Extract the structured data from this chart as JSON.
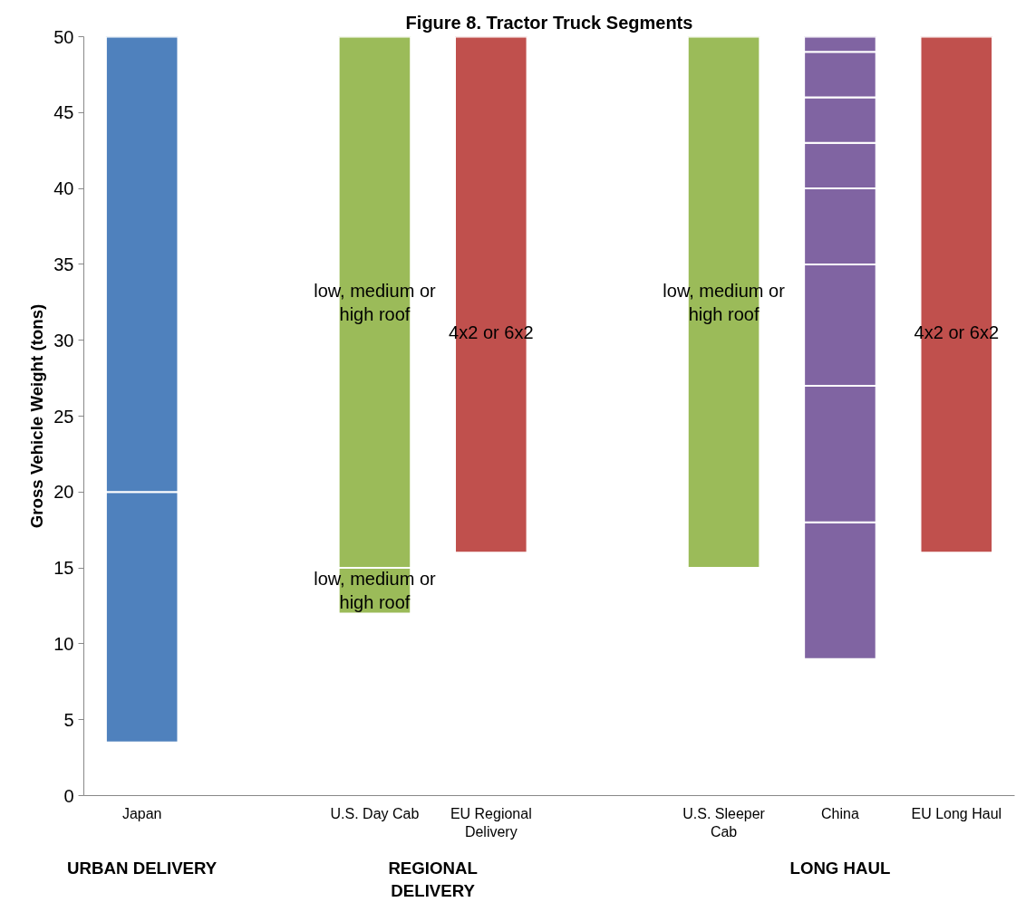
{
  "chart_data": {
    "type": "bar",
    "title": "Figure 8. Tractor Truck Segments",
    "ylabel": "Gross Vehicle Weight (tons)",
    "categories": [
      "Japan",
      null,
      "U.S. Day Cab",
      "EU Regional Delivery",
      null,
      "U.S. Sleeper Cab",
      "China",
      "EU Long Haul"
    ],
    "series": [
      {
        "base": [
          3.5,
          null,
          12,
          16,
          null,
          15,
          9,
          16
        ],
        "values": [
          16.5,
          null,
          3,
          34,
          null,
          35,
          9,
          34
        ],
        "colors": [
          "#4f81bd",
          null,
          "#9bbb59",
          "#c0504d",
          null,
          "#9bbb59",
          "#8064a2",
          "#c0504d"
        ]
      },
      {
        "base": [
          20,
          null,
          15,
          null,
          null,
          null,
          18,
          null
        ],
        "values": [
          30,
          null,
          35,
          null,
          null,
          null,
          9,
          null
        ],
        "colors": [
          "#4f81bd",
          null,
          "#9bbb59",
          null,
          null,
          null,
          "#8064a2",
          null
        ]
      },
      {
        "base": [
          null,
          null,
          null,
          null,
          null,
          null,
          27,
          null
        ],
        "values": [
          null,
          null,
          null,
          null,
          null,
          null,
          8,
          null
        ],
        "colors": [
          null,
          null,
          null,
          null,
          null,
          null,
          "#8064a2",
          null
        ]
      },
      {
        "base": [
          null,
          null,
          null,
          null,
          null,
          null,
          35,
          null
        ],
        "values": [
          null,
          null,
          null,
          null,
          null,
          null,
          5,
          null
        ],
        "colors": [
          null,
          null,
          null,
          null,
          null,
          null,
          "#8064a2",
          null
        ]
      },
      {
        "base": [
          null,
          null,
          null,
          null,
          null,
          null,
          40,
          null
        ],
        "values": [
          null,
          null,
          null,
          null,
          null,
          null,
          3,
          null
        ],
        "colors": [
          null,
          null,
          null,
          null,
          null,
          null,
          "#8064a2",
          null
        ]
      },
      {
        "base": [
          null,
          null,
          null,
          null,
          null,
          null,
          43,
          null
        ],
        "values": [
          null,
          null,
          null,
          null,
          null,
          null,
          3,
          null
        ],
        "colors": [
          null,
          null,
          null,
          null,
          null,
          null,
          "#8064a2",
          null
        ]
      },
      {
        "base": [
          null,
          null,
          null,
          null,
          null,
          null,
          46,
          null
        ],
        "values": [
          null,
          null,
          null,
          null,
          null,
          null,
          3,
          null
        ],
        "colors": [
          null,
          null,
          null,
          null,
          null,
          null,
          "#8064a2",
          null
        ]
      },
      {
        "base": [
          null,
          null,
          null,
          null,
          null,
          null,
          49,
          null
        ],
        "values": [
          null,
          null,
          null,
          null,
          null,
          null,
          1,
          null
        ],
        "colors": [
          null,
          null,
          null,
          null,
          null,
          null,
          "#8064a2",
          null
        ]
      }
    ],
    "ylim": [
      0,
      50
    ],
    "yticks": [
      0,
      5,
      10,
      15,
      20,
      25,
      30,
      35,
      40,
      45,
      50
    ],
    "grid": false,
    "annotations": [
      "URBAN DELIVERY",
      "REGIONAL DELIVERY",
      "LONG HAUL",
      "low, medium or high roof",
      "low, medium or high roof",
      "4x2 or 6x2",
      "low, medium or high roof",
      "4x2 or 6x2"
    ]
  }
}
